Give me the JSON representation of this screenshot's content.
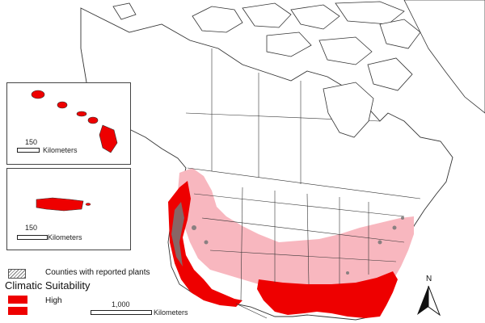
{
  "legend": {
    "counties_label": "Counties with reported plants",
    "title": "Climatic Suitability",
    "high_label": "High"
  },
  "scales": {
    "hawaii": {
      "value": "150",
      "unit": "Kilometers"
    },
    "puerto_rico": {
      "value": "150",
      "unit": "Kilometers"
    },
    "main": {
      "value": "1,000",
      "unit": "Kilometers"
    }
  },
  "north_arrow": {
    "label": "N"
  },
  "colors": {
    "high": "#ee0000",
    "moderate": "#f8b7bf",
    "land": "#ffffff",
    "border": "#333333",
    "counties": "#777777"
  }
}
